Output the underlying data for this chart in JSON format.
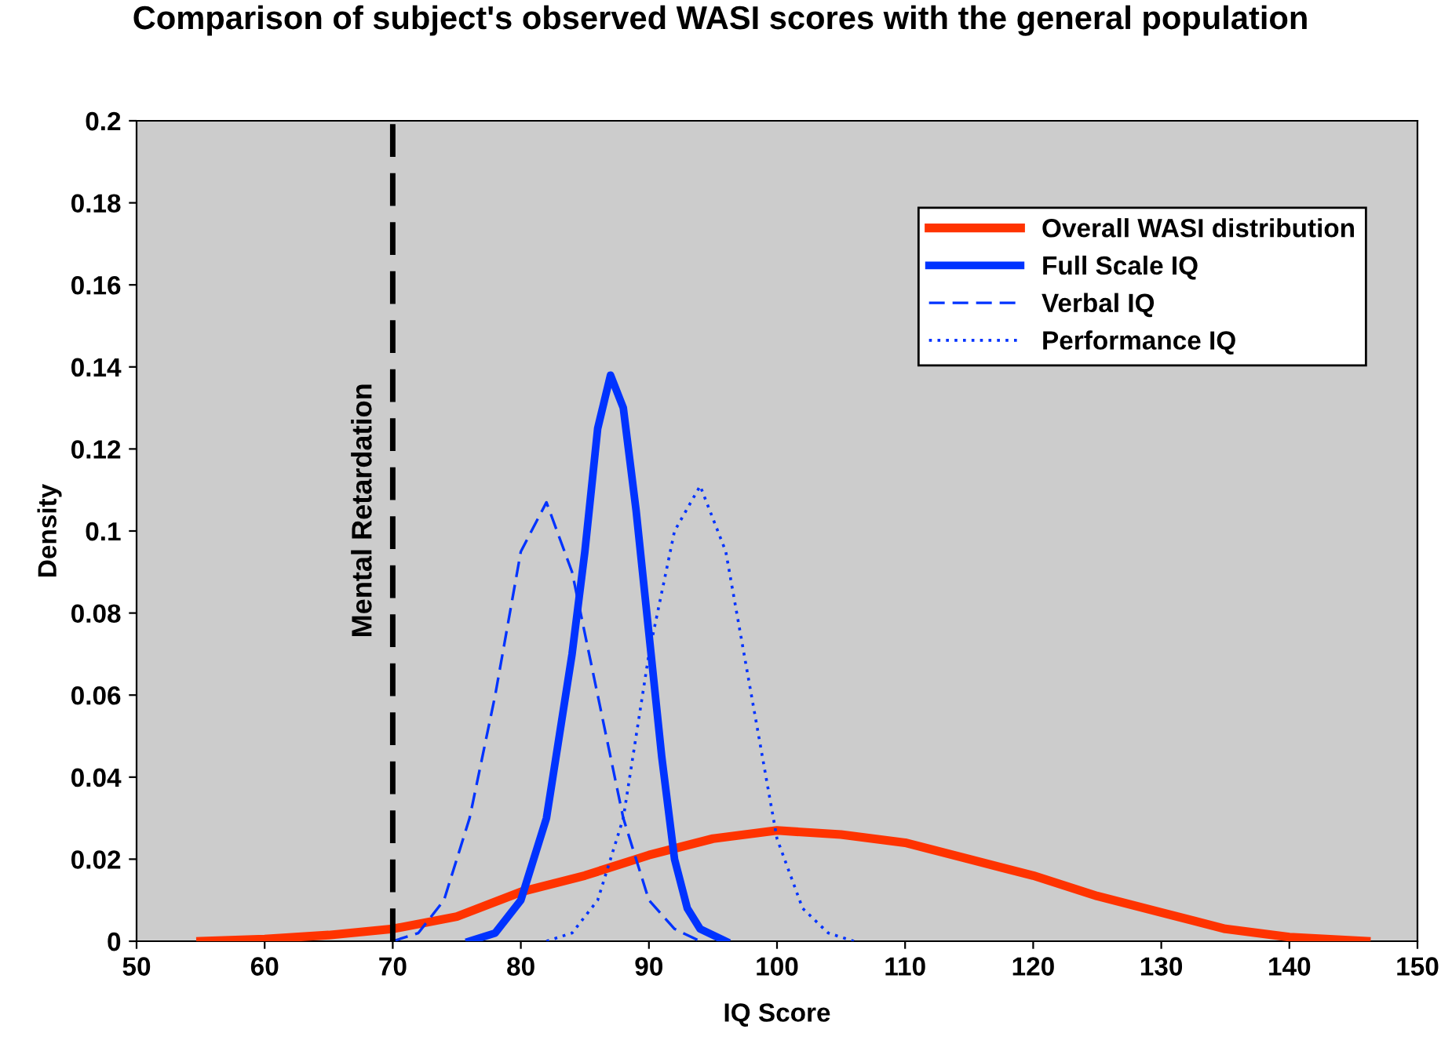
{
  "chart_data": {
    "type": "line",
    "title": "Comparison of subject's observed WASI scores with the general population",
    "xlabel": "IQ Score",
    "ylabel": "Density",
    "xlim": [
      50,
      150
    ],
    "xticks": [
      50,
      60,
      70,
      80,
      90,
      100,
      110,
      120,
      130,
      140,
      150
    ],
    "ylim": [
      0,
      0.2
    ],
    "yticks": [
      0,
      0.02,
      0.04,
      0.06,
      0.08,
      0.1,
      0.12,
      0.14,
      0.16,
      0.18,
      0.2
    ],
    "grid": false,
    "legend": "top right",
    "marker": "none",
    "series": [
      {
        "name": "Overall WASI distribution",
        "color": "#ff3300",
        "line_style": "solid",
        "x": [
          55,
          60,
          65,
          70,
          75,
          80,
          85,
          90,
          95,
          100,
          105,
          110,
          115,
          120,
          125,
          130,
          135,
          140,
          146
        ],
        "values": [
          0,
          0.0005,
          0.0015,
          0.003,
          0.006,
          0.012,
          0.016,
          0.021,
          0.025,
          0.027,
          0.026,
          0.024,
          0.02,
          0.016,
          0.011,
          0.007,
          0.003,
          0.001,
          0
        ]
      },
      {
        "name": "Full Scale IQ",
        "color": "#0033ff",
        "line_style": "solid",
        "x": [
          76,
          78,
          80,
          82,
          84,
          85,
          86,
          87,
          88,
          89,
          90,
          91,
          92,
          93,
          94,
          96
        ],
        "values": [
          0,
          0.002,
          0.01,
          0.03,
          0.07,
          0.095,
          0.125,
          0.138,
          0.13,
          0.105,
          0.075,
          0.045,
          0.02,
          0.008,
          0.003,
          0
        ]
      },
      {
        "name": "Verbal IQ",
        "color": "#0033ff",
        "line_style": "dashed",
        "x": [
          70,
          72,
          74,
          76,
          78,
          80,
          82,
          84,
          86,
          88,
          90,
          92,
          94
        ],
        "values": [
          0,
          0.002,
          0.01,
          0.03,
          0.06,
          0.095,
          0.107,
          0.09,
          0.06,
          0.03,
          0.01,
          0.003,
          0
        ]
      },
      {
        "name": "Performance IQ",
        "color": "#0033ff",
        "line_style": "dotted",
        "x": [
          82,
          84,
          86,
          88,
          90,
          92,
          94,
          96,
          98,
          100,
          102,
          104,
          106
        ],
        "values": [
          0,
          0.002,
          0.01,
          0.03,
          0.07,
          0.1,
          0.111,
          0.095,
          0.06,
          0.025,
          0.008,
          0.002,
          0
        ]
      }
    ],
    "ref_lines": [
      {
        "axis": "x",
        "value": 70,
        "label": "Mental Retardation",
        "color": "#000000",
        "line_style": "dashed"
      }
    ]
  }
}
